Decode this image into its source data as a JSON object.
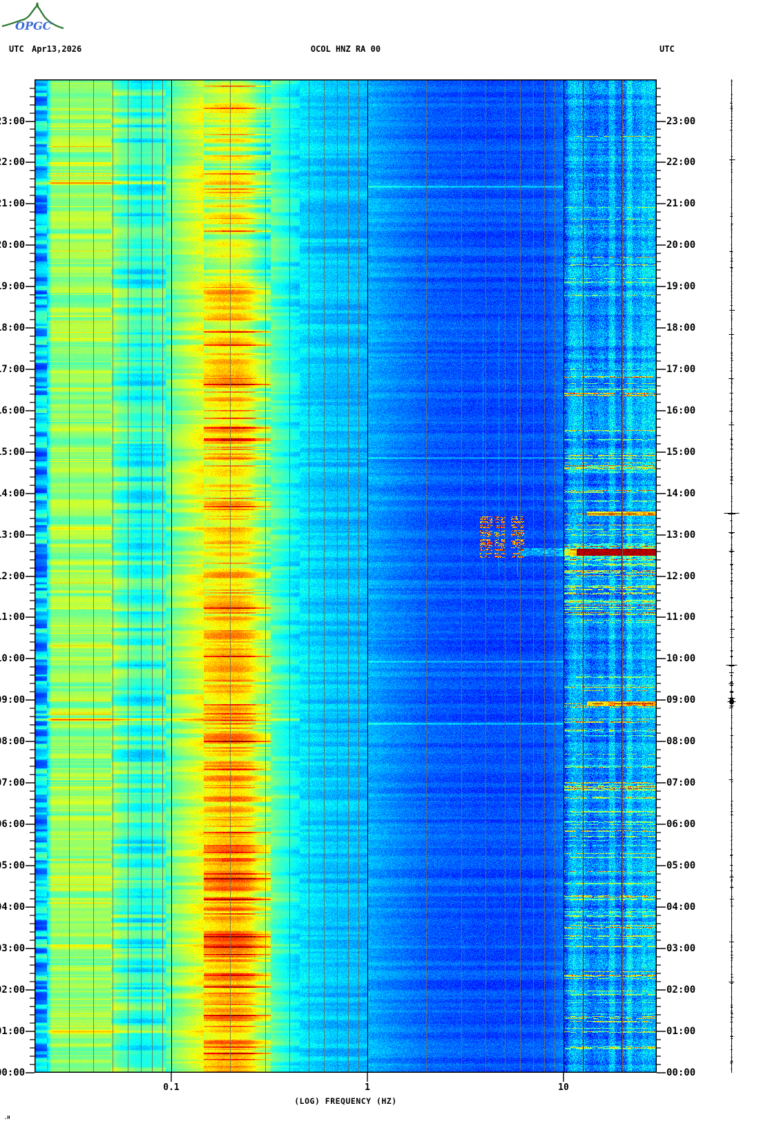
{
  "header": {
    "utc_left": "UTC",
    "date": "Apr13,2026",
    "title": "OCOL HNZ RA 00",
    "utc_right": "UTC"
  },
  "logo": {
    "text": "OPGC"
  },
  "corner_mark": ".H",
  "colors": {
    "background": "#ffffff",
    "grid_minor": "#6f6f58",
    "grid_major": "#000000",
    "axis": "#000000",
    "interference_12hz": "#8b0000",
    "interference_20hz": "#9b1c00",
    "logo_green": "#2e7a33",
    "logo_blue": "#3c6bd8",
    "trace": "#000000"
  },
  "chart_data": {
    "type": "heatmap",
    "title": "OCOL HNZ RA 00",
    "date": "Apr13,2026",
    "xlabel": "(LOG) FREQUENCY (HZ)",
    "x_scale": "log",
    "x_range_hz": [
      0.02,
      30
    ],
    "x_major_ticks": [
      {
        "value": 0.1,
        "label": "0.1"
      },
      {
        "value": 1,
        "label": "1"
      },
      {
        "value": 10,
        "label": "10"
      }
    ],
    "x_minor_gridlines_hz": [
      0.03,
      0.04,
      0.05,
      0.06,
      0.07,
      0.08,
      0.09,
      0.2,
      0.3,
      0.4,
      0.5,
      0.6,
      0.7,
      0.8,
      0.9,
      2,
      3,
      4,
      5,
      6,
      7,
      8,
      9,
      20
    ],
    "y_axis": {
      "unit": "UTC",
      "bottom": "00:00",
      "top": "24:00",
      "minor_tick_minutes": 12,
      "hour_labels": [
        "00:00",
        "01:00",
        "02:00",
        "03:00",
        "04:00",
        "05:00",
        "06:00",
        "07:00",
        "08:00",
        "09:00",
        "10:00",
        "11:00",
        "12:00",
        "13:00",
        "14:00",
        "15:00",
        "16:00",
        "17:00",
        "18:00",
        "19:00",
        "20:00",
        "21:00",
        "22:00",
        "23:00"
      ]
    },
    "colormap": "jet",
    "spectral_profile": [
      [
        0.02,
        0.3
      ],
      [
        0.0232,
        0.34
      ],
      [
        0.0245,
        0.52
      ],
      [
        0.049,
        0.52
      ],
      [
        0.0555,
        0.46
      ],
      [
        0.068,
        0.4
      ],
      [
        0.0935,
        0.44
      ],
      [
        0.104,
        0.5
      ],
      [
        0.121,
        0.55
      ],
      [
        0.133,
        0.58
      ],
      [
        0.152,
        0.62
      ],
      [
        0.179,
        0.66
      ],
      [
        0.22,
        0.66
      ],
      [
        0.249,
        0.62
      ],
      [
        0.273,
        0.55
      ],
      [
        0.303,
        0.5
      ],
      [
        0.34,
        0.45
      ],
      [
        0.437,
        0.36
      ],
      [
        0.605,
        0.32
      ],
      [
        1.0,
        0.3
      ],
      [
        1.36,
        0.26
      ],
      [
        2.04,
        0.22
      ],
      [
        3.9,
        0.2
      ],
      [
        8.1,
        0.2
      ],
      [
        10,
        0.24
      ],
      [
        10.8,
        0.3
      ],
      [
        12.1,
        0.28
      ],
      [
        13.7,
        0.26
      ],
      [
        15.5,
        0.3
      ],
      [
        18.2,
        0.28
      ],
      [
        21.3,
        0.3
      ],
      [
        25.0,
        0.28
      ],
      [
        29.8,
        0.26
      ]
    ],
    "microseism_envelope": [
      {
        "from_hour": 0,
        "to_hour": 5,
        "boost": 0.06
      },
      {
        "from_hour": 5,
        "to_hour": 9.5,
        "boost": 0.04
      },
      {
        "from_hour": 9.5,
        "to_hour": 19,
        "boost": 0.0
      },
      {
        "from_hour": 19,
        "to_hour": 24,
        "boost": -0.08
      }
    ],
    "interference_lines_hz": [
      12.5,
      19.8
    ],
    "events": {
      "left_band_streaks": [
        {
          "time": "08:32",
          "boost": 0.3
        },
        {
          "time": "08:40",
          "boost": 0.12
        },
        {
          "time": "01:00",
          "boost": 0.13
        },
        {
          "time": "04:12",
          "boost": 0.11
        },
        {
          "time": "06:40",
          "boost": 0.1
        },
        {
          "time": "21:30",
          "boost": 0.1
        },
        {
          "time": "03:05",
          "boost": 0.1
        },
        {
          "time": "13:10",
          "boost": 0.1
        }
      ],
      "midband_lines": [
        {
          "time": "09:56"
        },
        {
          "time": "08:26"
        },
        {
          "time": "14:52"
        },
        {
          "time": "21:25"
        }
      ],
      "event_4_7hz": {
        "time_start": "12:27",
        "time_end": "13:27",
        "freq_hz": [
          4.0,
          7.5
        ]
      },
      "hf_red_band": {
        "time": "12:35",
        "freq_hz": [
          11,
          30
        ]
      },
      "hf_secondary_bands": [
        {
          "time": "13:31",
          "freq_hz": [
            13,
            30
          ]
        },
        {
          "time": "08:56",
          "freq_hz": [
            13,
            30
          ]
        }
      ],
      "hf_streak_periods": [
        {
          "from_hour": 0.5,
          "to_hour": 9.7,
          "density": 0.5
        },
        {
          "from_hour": 10.5,
          "to_hour": 14.2,
          "density": 0.7
        },
        {
          "from_hour": 14.5,
          "to_hour": 17.5,
          "density": 0.45
        },
        {
          "from_hour": 18.8,
          "to_hour": 21.2,
          "density": 0.25
        },
        {
          "from_hour": 22.0,
          "to_hour": 24.0,
          "density": 0.15
        }
      ]
    },
    "side_trace_events": [
      {
        "time": "13:32",
        "size": 22
      },
      {
        "time": "13:04",
        "size": 9
      },
      {
        "time": "12:37",
        "size": 8
      },
      {
        "time": "12:18",
        "size": 5
      },
      {
        "time": "11:54",
        "size": 4
      },
      {
        "time": "11:30",
        "size": 4
      },
      {
        "time": "11:10",
        "size": 3
      },
      {
        "time": "14:25",
        "size": 4
      },
      {
        "time": "10:12",
        "size": 4
      },
      {
        "time": "09:51",
        "size": 16
      },
      {
        "time": "09:22",
        "size": 5
      },
      {
        "time": "09:12",
        "size": 6
      },
      {
        "time": "09:03",
        "size": 10
      },
      {
        "time": "08:58",
        "size": 12,
        "blob": true
      },
      {
        "time": "08:52",
        "size": 6
      }
    ]
  }
}
